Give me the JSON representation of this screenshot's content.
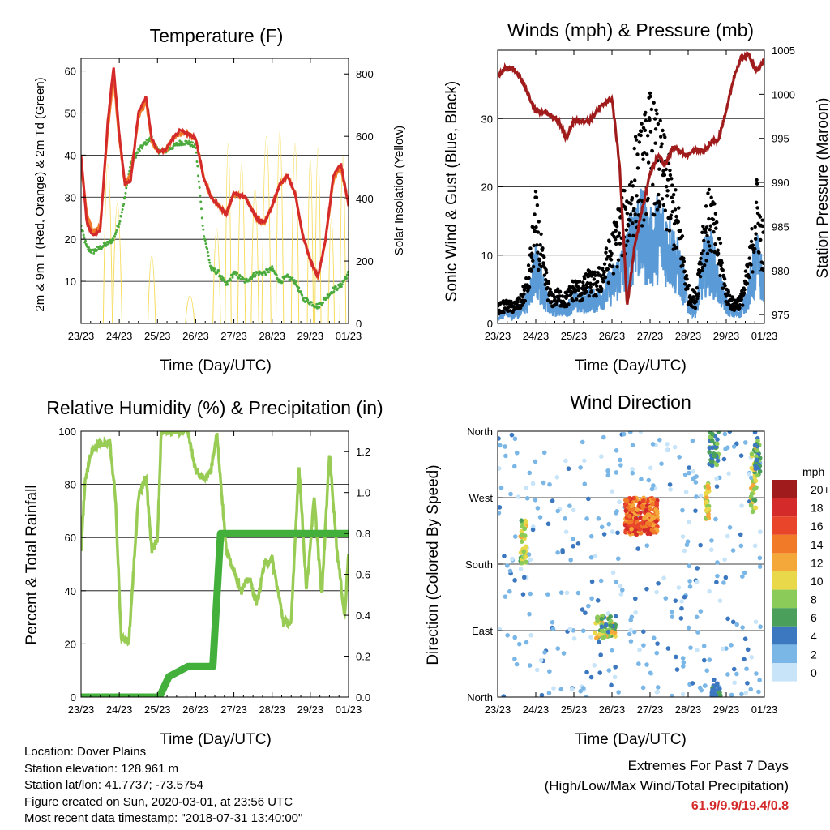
{
  "x_ticks": [
    "23/23",
    "24/23",
    "25/23",
    "26/23",
    "27/23",
    "28/23",
    "29/23",
    "01/23"
  ],
  "info": {
    "location": "Location: Dover Plains",
    "elevation": "Station elevation: 128.961 m",
    "latlon": "Station lat/lon: 41.7737; -73.5754",
    "created": "Figure created on Sun, 2020-03-01, at 23:56 UTC",
    "recent": "Most recent data timestamp: \"2018-07-31 13:40:00\""
  },
  "extremes": {
    "title": "Extremes For Past 7 Days",
    "subtitle": "(High/Low/Max Wind/Total Precipitation)",
    "values": "61.9/9.9/19.4/0.8"
  },
  "colors": {
    "temp_2m": "#d42a2a",
    "temp_9m": "#f07a28",
    "dewpoint": "#4aaa3c",
    "solar": "#f5dc5a",
    "gust": "#000000",
    "wind": "#5a9ad6",
    "pressure": "#a01c1c",
    "rh": "#99cc55",
    "precip": "#44b03c"
  },
  "chart_data": [
    {
      "type": "line",
      "title": "Temperature (F)",
      "xlabel": "Time (Day/UTC)",
      "ylabel": "2m & 9m T (Red, Orange) & 2m Td (Green)",
      "y2label": "Solar Insolation (Yellow)",
      "ylim": [
        0,
        63
      ],
      "y2lim": [
        0,
        850
      ],
      "yticks": [
        10,
        20,
        30,
        40,
        50,
        60
      ],
      "y2ticks": [
        0,
        200,
        400,
        600,
        800
      ],
      "x": [
        0,
        0.15,
        0.3,
        0.5,
        0.7,
        0.85,
        1.0,
        1.15,
        1.3,
        1.5,
        1.7,
        1.85,
        2.0,
        2.2,
        2.4,
        2.6,
        2.8,
        3.0,
        3.2,
        3.4,
        3.6,
        3.8,
        4.0,
        4.3,
        4.6,
        4.8,
        5.0,
        5.2,
        5.4,
        5.6,
        5.8,
        6.0,
        6.2,
        6.4,
        6.6,
        6.8,
        7.0
      ],
      "series": [
        {
          "name": "2m T",
          "values": [
            40,
            24,
            21,
            22,
            48,
            61,
            45,
            33,
            34,
            50,
            54,
            44,
            41,
            41,
            44,
            46,
            45,
            44,
            35,
            30,
            28,
            26,
            31,
            30,
            25,
            24,
            28,
            33,
            35,
            31,
            21,
            15,
            11,
            20,
            35,
            38,
            28
          ]
        },
        {
          "name": "9m T",
          "values": [
            38,
            26,
            22,
            23,
            46,
            59,
            44,
            33,
            35,
            49,
            53,
            43,
            41,
            41,
            44,
            45,
            45,
            44,
            35,
            30,
            28,
            26,
            31,
            30,
            25,
            24,
            28,
            33,
            35,
            31,
            21,
            15,
            11,
            20,
            34,
            37,
            28
          ]
        },
        {
          "name": "2m Td",
          "values": [
            23,
            18,
            17,
            18,
            19,
            20,
            24,
            30,
            38,
            41,
            43,
            44,
            41,
            41,
            42,
            43,
            43,
            42,
            22,
            13,
            12,
            9,
            12,
            10,
            12,
            12,
            13,
            10,
            11,
            10,
            6,
            5,
            4,
            6,
            8,
            9,
            12
          ]
        },
        {
          "name": "Solar Insolation",
          "pulses": [
            [
              0.7,
              0.12,
              640
            ],
            [
              0.95,
              0.12,
              480
            ],
            [
              1.85,
              0.1,
              270
            ],
            [
              2.85,
              0.12,
              110
            ],
            [
              3.55,
              0.1,
              380
            ],
            [
              3.85,
              0.08,
              720
            ],
            [
              4.2,
              0.1,
              640
            ],
            [
              4.55,
              0.1,
              540
            ],
            [
              4.85,
              0.12,
              750
            ],
            [
              5.2,
              0.1,
              770
            ],
            [
              5.6,
              0.1,
              720
            ],
            [
              6.0,
              0.08,
              660
            ],
            [
              6.2,
              0.08,
              700
            ],
            [
              6.55,
              0.08,
              420
            ],
            [
              6.85,
              0.08,
              670
            ]
          ]
        }
      ]
    },
    {
      "type": "scatter",
      "title": "Winds (mph) & Pressure (mb)",
      "xlabel": "Time (Day/UTC)",
      "ylabel": "Sonic Wind & Gust (Blue, Black)",
      "y2label": "Station Pressure (Maroon)",
      "ylim": [
        0,
        40
      ],
      "y2lim": [
        974,
        1005
      ],
      "yticks": [
        0,
        10,
        20,
        30
      ],
      "y2ticks": [
        975,
        980,
        985,
        990,
        995,
        1000,
        1005
      ],
      "x": [
        0,
        0.2,
        0.4,
        0.6,
        0.8,
        1.0,
        1.2,
        1.4,
        1.6,
        1.8,
        2.0,
        2.2,
        2.4,
        2.6,
        2.8,
        3.0,
        3.2,
        3.4,
        3.6,
        3.8,
        4.0,
        4.2,
        4.4,
        4.6,
        4.8,
        5.0,
        5.2,
        5.4,
        5.6,
        5.8,
        6.0,
        6.2,
        6.4,
        6.6,
        6.8,
        7.0
      ],
      "series": [
        {
          "name": "Wind",
          "values": [
            1,
            1.5,
            1.2,
            2,
            4,
            9,
            5,
            2,
            2.5,
            2.2,
            3.5,
            3,
            4,
            3.5,
            5,
            6,
            8,
            10,
            15,
            14,
            12,
            14,
            13,
            11,
            8,
            3,
            2,
            9,
            10,
            6,
            3,
            1.5,
            2,
            5,
            10,
            6
          ]
        },
        {
          "name": "Gust",
          "values": [
            2.5,
            3,
            2.8,
            3.5,
            7,
            17,
            9,
            4,
            4.5,
            4,
            6,
            5.5,
            7,
            6.5,
            9,
            12,
            16,
            18,
            24,
            26,
            30,
            27,
            24,
            19,
            14,
            5,
            4,
            15,
            18,
            12,
            5,
            3,
            4,
            9,
            19,
            12
          ]
        },
        {
          "name": "Pressure",
          "values": [
            1002,
            1003,
            1003,
            1002,
            1000,
            998,
            998,
            997.5,
            997,
            995,
            997,
            997,
            997,
            998,
            999,
            999.5,
            992,
            976,
            983,
            987,
            991,
            993,
            992,
            994,
            993.5,
            993,
            993.8,
            993.4,
            994.5,
            995,
            998,
            1002,
            1004.2,
            1004.5,
            1002.5,
            1004
          ]
        }
      ]
    },
    {
      "type": "line",
      "title": "Relative Humidity (%) & Precipitation (in)",
      "xlabel": "Time (Day/UTC)",
      "ylabel": "Percent & Total Rainfall",
      "ylim": [
        0,
        100
      ],
      "y2lim": [
        0,
        1.3
      ],
      "yticks": [
        0,
        20,
        40,
        60,
        80,
        100
      ],
      "y2ticks": [
        0.0,
        0.2,
        0.4,
        0.6,
        0.8,
        1.0,
        1.2
      ],
      "x": [
        0,
        0.1,
        0.25,
        0.45,
        0.6,
        0.75,
        0.9,
        1.05,
        1.25,
        1.5,
        1.7,
        1.85,
        2.0,
        2.1,
        2.4,
        2.8,
        3.0,
        3.2,
        3.4,
        3.55,
        3.8,
        4.0,
        4.2,
        4.4,
        4.6,
        4.8,
        5.0,
        5.3,
        5.5,
        5.7,
        5.9,
        6.1,
        6.3,
        6.5,
        6.7,
        6.9,
        7.0
      ],
      "series": [
        {
          "name": "RH",
          "values": [
            55,
            80,
            92,
            95,
            95,
            96,
            75,
            22,
            21,
            75,
            83,
            55,
            60,
            100,
            100,
            100,
            85,
            82,
            85,
            100,
            55,
            48,
            40,
            45,
            35,
            50,
            52,
            28,
            28,
            88,
            40,
            75,
            38,
            92,
            55,
            30,
            55
          ]
        },
        {
          "name": "Precip",
          "steps": [
            [
              0,
              0
            ],
            [
              2.05,
              0
            ],
            [
              2.3,
              0.1
            ],
            [
              2.5,
              0.12
            ],
            [
              2.8,
              0.15
            ],
            [
              3.45,
              0.15
            ],
            [
              3.65,
              0.8
            ],
            [
              7.0,
              0.8
            ]
          ]
        }
      ]
    },
    {
      "type": "scatter",
      "title": "Wind Direction",
      "xlabel": "Time (Day/UTC)",
      "ylabel": "Direction (Colored By Speed)",
      "yticks": [
        "North",
        "East",
        "South",
        "West",
        "North"
      ],
      "ylim": [
        0,
        360
      ],
      "colorbar": {
        "title": "mph",
        "labels": [
          "20+",
          "18",
          "16",
          "14",
          "12",
          "10",
          "8",
          "6",
          "4",
          "2",
          "0"
        ],
        "colors": [
          "#a01c1c",
          "#d42a2a",
          "#e8452a",
          "#f07a28",
          "#f5a83a",
          "#e8d84a",
          "#8acb5a",
          "#4aa05a",
          "#3b78c0",
          "#7ab6e6",
          "#c8e4f8"
        ]
      },
      "clusters": [
        [
          0.0,
          6.9,
          0,
          360,
          360,
          0,
          4
        ],
        [
          0.6,
          0.75,
          180,
          240,
          40,
          6,
          12
        ],
        [
          2.55,
          3.1,
          80,
          110,
          60,
          4,
          13
        ],
        [
          3.35,
          4.2,
          220,
          270,
          260,
          11,
          19
        ],
        [
          5.45,
          5.55,
          240,
          290,
          40,
          7,
          12
        ],
        [
          5.55,
          5.8,
          310,
          360,
          40,
          3,
          9
        ],
        [
          5.6,
          5.85,
          0,
          25,
          25,
          3,
          7
        ],
        [
          6.65,
          6.8,
          250,
          340,
          40,
          6,
          12
        ],
        [
          6.75,
          6.9,
          300,
          360,
          30,
          3,
          8
        ]
      ]
    }
  ]
}
